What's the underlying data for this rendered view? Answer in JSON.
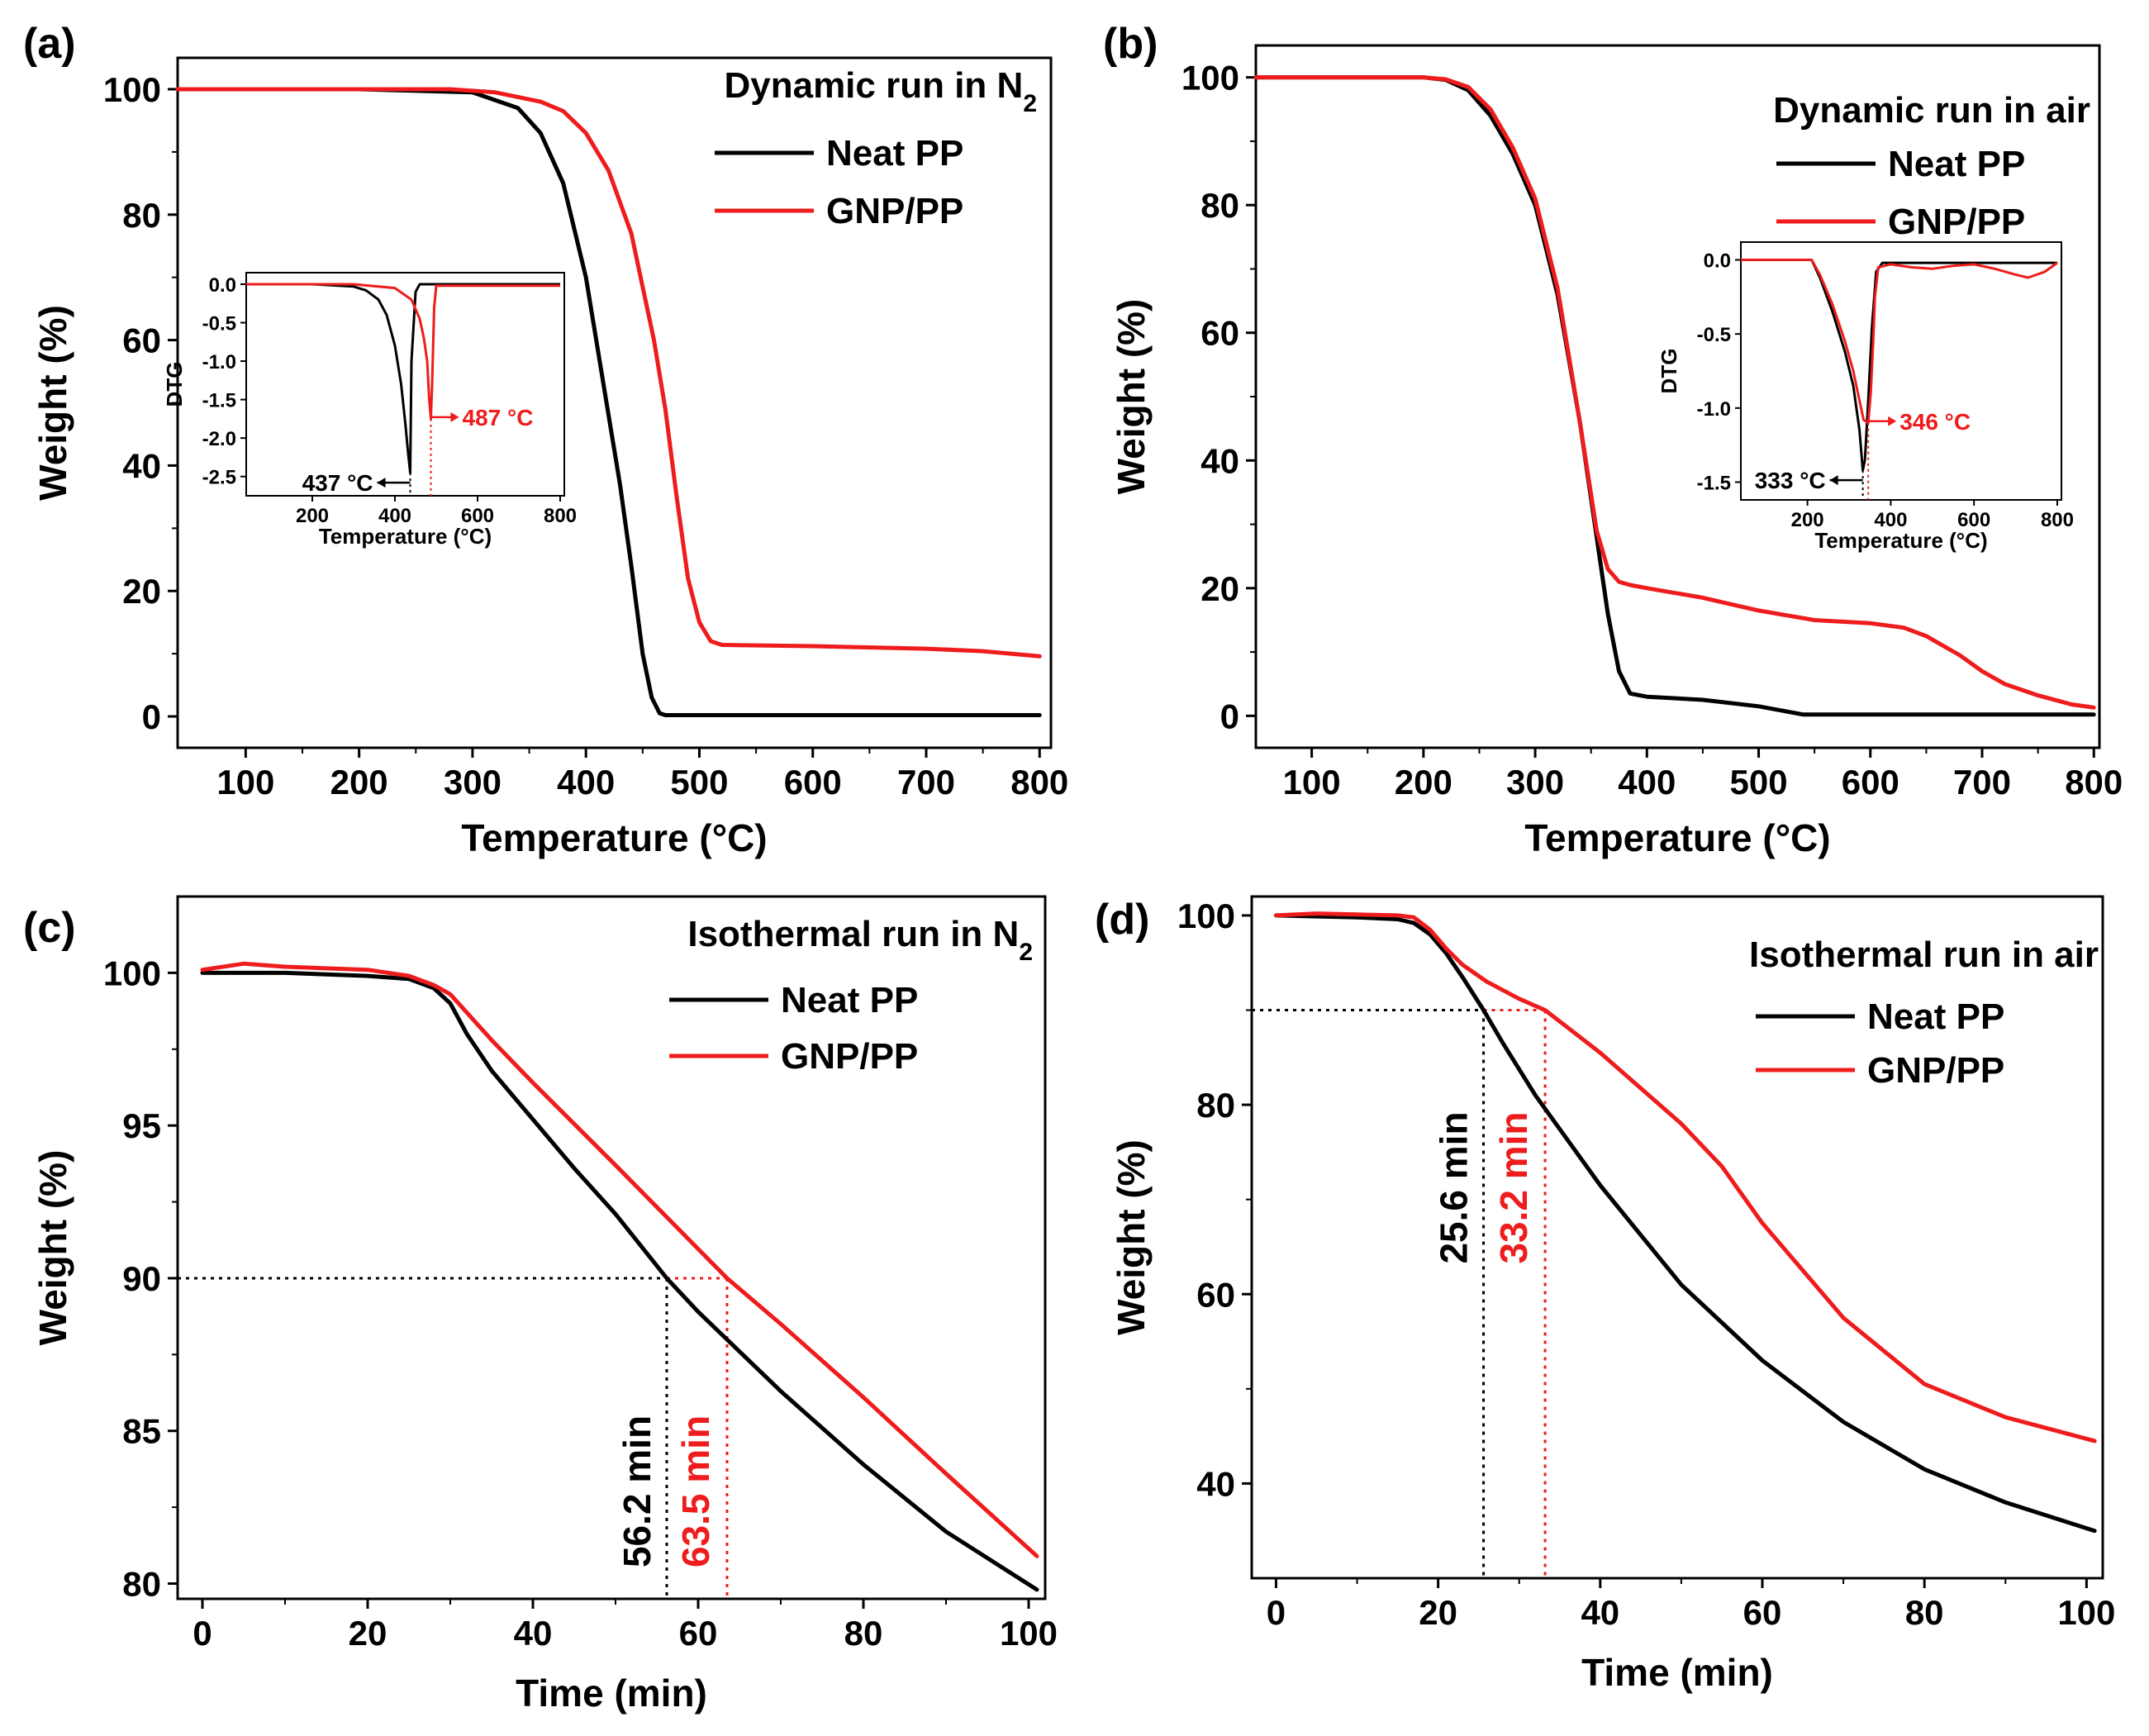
{
  "figure": {
    "colors": {
      "neat": "#000000",
      "gnp": "#ee1c1c"
    }
  },
  "chart_data": [
    {
      "id": "a",
      "type": "line",
      "panel_label": "(a)",
      "title": "Dynamic run in N",
      "title_sub": "2",
      "xlabel": "Temperature (°C)",
      "ylabel": "Weight (%)",
      "xlim": [
        40,
        810
      ],
      "ylim": [
        -5,
        105
      ],
      "xticks": [
        100,
        200,
        300,
        400,
        500,
        600,
        700,
        800
      ],
      "yticks": [
        0,
        20,
        40,
        60,
        80,
        100
      ],
      "legend_position": "top-right",
      "series": [
        {
          "name": "Neat PP",
          "color": "#000000",
          "x": [
            40,
            100,
            200,
            300,
            340,
            360,
            380,
            400,
            420,
            430,
            440,
            450,
            458,
            465,
            470,
            480,
            500,
            600,
            700,
            800
          ],
          "y": [
            100,
            100,
            100,
            99.5,
            97,
            93,
            85,
            70,
            48,
            37,
            24,
            10,
            3,
            0.5,
            0.2,
            0.2,
            0.2,
            0.2,
            0.2,
            0.2
          ]
        },
        {
          "name": "GNP/PP",
          "color": "#ee1c1c",
          "x": [
            40,
            100,
            200,
            280,
            320,
            360,
            380,
            400,
            420,
            440,
            460,
            470,
            480,
            490,
            500,
            510,
            520,
            600,
            700,
            750,
            800
          ],
          "y": [
            100,
            100,
            100,
            100,
            99.5,
            98,
            96.5,
            93,
            87,
            77,
            60,
            49,
            35,
            22,
            15,
            12,
            11.4,
            11.2,
            10.8,
            10.4,
            9.6
          ]
        }
      ],
      "inset": {
        "xlabel": "Temperature (°C)",
        "ylabel": "DTG",
        "xlim": [
          40,
          810
        ],
        "ylim": [
          -2.75,
          0.15
        ],
        "xticks": [
          200,
          400,
          600,
          800
        ],
        "yticks": [
          0.0,
          -0.5,
          -1.0,
          -1.5,
          -2.0,
          -2.5
        ],
        "ytick_labels": [
          "0.0",
          "-0.5",
          "-1.0",
          "-1.5",
          "-2.0",
          "-2.5"
        ],
        "series": [
          {
            "name": "Neat PP",
            "color": "#000000",
            "x": [
              40,
              200,
              300,
              330,
              360,
              380,
              400,
              415,
              425,
              432,
              437,
              440,
              450,
              460,
              470,
              800
            ],
            "y": [
              0,
              0,
              -0.03,
              -0.08,
              -0.2,
              -0.4,
              -0.8,
              -1.3,
              -1.8,
              -2.2,
              -2.45,
              -1.0,
              -0.1,
              0,
              0,
              0
            ]
          },
          {
            "name": "GNP/PP",
            "color": "#ee1c1c",
            "x": [
              40,
              300,
              400,
              440,
              460,
              470,
              478,
              483,
              487,
              490,
              495,
              500,
              800
            ],
            "y": [
              0,
              0,
              -0.05,
              -0.2,
              -0.45,
              -0.7,
              -1.0,
              -1.5,
              -1.75,
              -1.3,
              -0.3,
              -0.02,
              -0.02
            ]
          }
        ],
        "annotations": [
          {
            "label": "437 °C",
            "x": 437,
            "color": "#000000"
          },
          {
            "label": "487 °C",
            "x": 487,
            "color": "#ee1c1c"
          }
        ]
      }
    },
    {
      "id": "b",
      "type": "line",
      "panel_label": "(b)",
      "title": "Dynamic run in air",
      "xlabel": "Temperature (°C)",
      "ylabel": "Weight (%)",
      "xlim": [
        50,
        805
      ],
      "ylim": [
        -5,
        105
      ],
      "xticks": [
        100,
        200,
        300,
        400,
        500,
        600,
        700,
        800
      ],
      "yticks": [
        0,
        20,
        40,
        60,
        80,
        100
      ],
      "legend_position": "top-right",
      "series": [
        {
          "name": "Neat PP",
          "color": "#000000",
          "x": [
            50,
            150,
            200,
            220,
            240,
            260,
            280,
            300,
            320,
            340,
            355,
            365,
            375,
            385,
            400,
            450,
            500,
            540,
            600,
            700,
            800
          ],
          "y": [
            100,
            100,
            100,
            99.6,
            98,
            94,
            88,
            80,
            66,
            46,
            28,
            16,
            7,
            3.5,
            3,
            2.5,
            1.5,
            0.2,
            0.2,
            0.2,
            0.2
          ]
        },
        {
          "name": "GNP/PP",
          "color": "#ee1c1c",
          "x": [
            50,
            150,
            200,
            220,
            240,
            260,
            280,
            300,
            320,
            340,
            355,
            365,
            375,
            385,
            400,
            450,
            500,
            550,
            600,
            630,
            650,
            680,
            700,
            720,
            750,
            780,
            800
          ],
          "y": [
            100,
            100,
            100,
            99.7,
            98.5,
            95,
            89,
            81,
            67,
            46,
            29,
            23,
            21,
            20.5,
            20,
            18.5,
            16.5,
            15,
            14.5,
            13.8,
            12.5,
            9.5,
            7,
            5,
            3.2,
            1.8,
            1.3
          ]
        }
      ],
      "inset": {
        "xlabel": "Temperature (°C)",
        "ylabel": "DTG",
        "xlim": [
          40,
          810
        ],
        "ylim": [
          -1.62,
          0.12
        ],
        "xticks": [
          200,
          400,
          600,
          800
        ],
        "yticks": [
          0.0,
          -0.5,
          -1.0,
          -1.5
        ],
        "ytick_labels": [
          "0.0",
          "-0.5",
          "-1.0",
          "-1.5"
        ],
        "series": [
          {
            "name": "Neat PP",
            "color": "#000000",
            "x": [
              40,
              200,
              210,
              230,
              260,
              290,
              310,
              325,
              333,
              338,
              345,
              355,
              365,
              380,
              800
            ],
            "y": [
              0,
              0,
              0,
              -0.12,
              -0.35,
              -0.62,
              -0.85,
              -1.15,
              -1.42,
              -1.35,
              -1.0,
              -0.45,
              -0.08,
              -0.02,
              -0.02
            ]
          },
          {
            "name": "GNP/PP",
            "color": "#ee1c1c",
            "x": [
              40,
              200,
              210,
              230,
              260,
              290,
              310,
              325,
              335,
              346,
              352,
              358,
              362,
              370,
              400,
              450,
              500,
              550,
              600,
              650,
              700,
              730,
              770,
              800
            ],
            "y": [
              0,
              0,
              0,
              -0.1,
              -0.3,
              -0.55,
              -0.75,
              -0.95,
              -1.08,
              -1.1,
              -0.9,
              -0.55,
              -0.25,
              -0.05,
              -0.03,
              -0.05,
              -0.06,
              -0.04,
              -0.03,
              -0.06,
              -0.1,
              -0.12,
              -0.08,
              -0.02
            ]
          }
        ],
        "annotations": [
          {
            "label": "333 °C",
            "x": 333,
            "color": "#000000"
          },
          {
            "label": "346 °C",
            "x": 346,
            "color": "#ee1c1c"
          }
        ]
      }
    },
    {
      "id": "c",
      "type": "line",
      "panel_label": "(c)",
      "title": "Isothermal run in N",
      "title_sub": "2",
      "xlabel": "Time (min)",
      "ylabel": "Weight (%)",
      "xlim": [
        -3,
        102
      ],
      "ylim": [
        79.5,
        102.5
      ],
      "xticks": [
        0,
        20,
        40,
        60,
        80,
        100
      ],
      "yticks": [
        80,
        85,
        90,
        95,
        100
      ],
      "legend_position": "top-right",
      "series": [
        {
          "name": "Neat PP",
          "color": "#000000",
          "x": [
            0,
            10,
            20,
            25,
            28,
            30,
            32,
            35,
            40,
            45,
            50,
            56.2,
            60,
            70,
            80,
            90,
            101
          ],
          "y": [
            100,
            100,
            99.9,
            99.8,
            99.5,
            99,
            98,
            96.8,
            95.2,
            93.6,
            92.1,
            90,
            88.9,
            86.3,
            83.9,
            81.7,
            79.8
          ]
        },
        {
          "name": "GNP/PP",
          "color": "#ee1c1c",
          "x": [
            0,
            5,
            10,
            20,
            25,
            28,
            30,
            32,
            35,
            40,
            50,
            63.5,
            70,
            80,
            90,
            101
          ],
          "y": [
            100.1,
            100.3,
            100.2,
            100.1,
            99.9,
            99.6,
            99.3,
            98.7,
            97.8,
            96.4,
            93.7,
            90,
            88.5,
            86.1,
            83.6,
            80.9
          ]
        }
      ],
      "guide": {
        "y": 90,
        "neat_x": 56.2,
        "gnp_x": 63.5
      },
      "annotations": [
        {
          "label": "56.2 min",
          "color": "#000000"
        },
        {
          "label": "63.5 min",
          "color": "#ee1c1c"
        }
      ]
    },
    {
      "id": "d",
      "type": "line",
      "panel_label": "(d)",
      "title": "Isothermal run in air",
      "xlabel": "Time (min)",
      "ylabel": "Weight (%)",
      "xlim": [
        -3,
        102
      ],
      "ylim": [
        30,
        102
      ],
      "xticks": [
        0,
        20,
        40,
        60,
        80,
        100
      ],
      "yticks": [
        40,
        60,
        80,
        100
      ],
      "legend_position": "top-right",
      "series": [
        {
          "name": "Neat PP",
          "color": "#000000",
          "x": [
            0,
            10,
            15,
            17,
            19,
            21,
            23,
            25.6,
            28,
            32,
            40,
            50,
            60,
            70,
            80,
            90,
            101
          ],
          "y": [
            100,
            99.8,
            99.6,
            99.2,
            98,
            96,
            93.5,
            90,
            86.5,
            81,
            71.5,
            61,
            53,
            46.5,
            41.5,
            38,
            35
          ]
        },
        {
          "name": "GNP/PP",
          "color": "#ee1c1c",
          "x": [
            0,
            5,
            10,
            15,
            17,
            19,
            21,
            23,
            26,
            30,
            33.2,
            40,
            50,
            55,
            60,
            70,
            80,
            90,
            101
          ],
          "y": [
            100,
            100.2,
            100.1,
            100,
            99.8,
            98.5,
            96.5,
            94.8,
            93,
            91.2,
            90,
            85.5,
            78,
            73.5,
            67.5,
            57.5,
            50.5,
            47,
            44.5
          ]
        }
      ],
      "guide": {
        "y": 90,
        "neat_x": 25.6,
        "gnp_x": 33.2
      },
      "annotations": [
        {
          "label": "25.6 min",
          "color": "#000000"
        },
        {
          "label": "33.2 min",
          "color": "#ee1c1c"
        }
      ]
    }
  ]
}
